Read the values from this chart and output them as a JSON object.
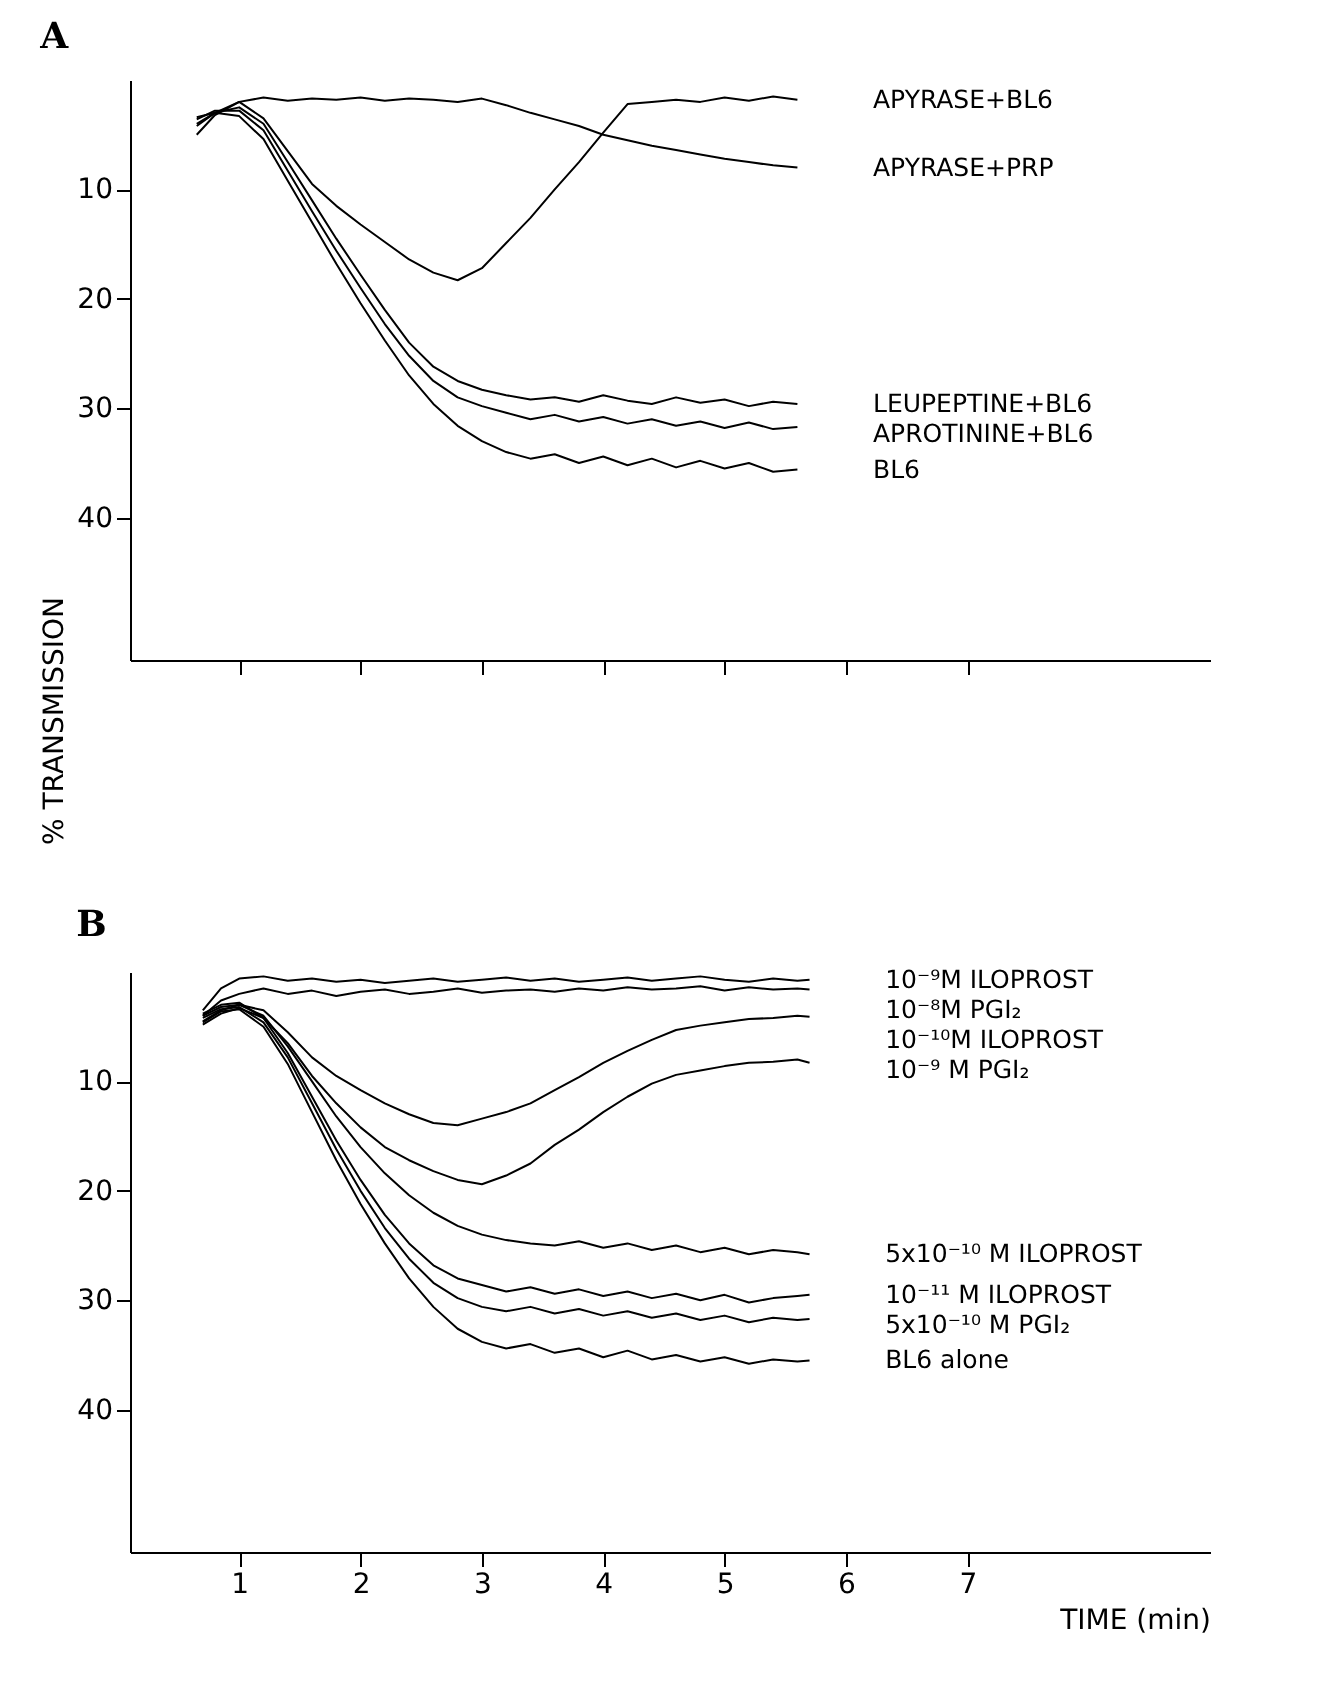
{
  "chart_data": [
    {
      "type": "line",
      "title": "A",
      "ylabel": "% TRANSMISSION",
      "xlim": [
        0.1,
        9.0
      ],
      "ylim": [
        53,
        0
      ],
      "xticks": [
        1,
        2,
        3,
        4,
        5,
        6,
        7
      ],
      "yticks": [
        10,
        20,
        30,
        40
      ],
      "tick_labels": "y",
      "x": [
        0.65,
        0.8,
        1.0,
        1.2,
        1.4,
        1.6,
        1.8,
        2.0,
        2.2,
        2.4,
        2.6,
        2.8,
        3.0,
        3.2,
        3.4,
        3.6,
        3.8,
        4.0,
        4.2,
        4.4,
        4.6,
        4.8,
        5.0,
        5.2,
        5.4,
        5.6
      ],
      "series": [
        {
          "name": "APYRASE+BL6",
          "color": "#000000",
          "values": [
            4.2,
            3.0,
            2.0,
            3.5,
            6.5,
            9.5,
            11.5,
            13.2,
            14.8,
            16.4,
            17.6,
            18.3,
            17.2,
            14.9,
            12.6,
            10.0,
            7.5,
            4.8,
            2.2,
            2.0,
            1.8,
            2.0,
            1.6,
            1.9,
            1.5,
            1.8
          ]
        },
        {
          "name": "APYRASE+PRP",
          "color": "#000000",
          "values": [
            5.0,
            3.2,
            2.0,
            1.6,
            1.9,
            1.7,
            1.8,
            1.6,
            1.9,
            1.7,
            1.8,
            2.0,
            1.7,
            2.3,
            3.0,
            3.6,
            4.2,
            5.0,
            5.5,
            6.0,
            6.4,
            6.8,
            7.2,
            7.5,
            7.8,
            8.0
          ]
        },
        {
          "name": "LEUPEPTINE+BL6",
          "color": "#000000",
          "values": [
            4.0,
            3.0,
            2.5,
            4.0,
            7.5,
            11.0,
            14.5,
            17.8,
            21.0,
            24.0,
            26.2,
            27.5,
            28.3,
            28.8,
            29.2,
            29.0,
            29.4,
            28.8,
            29.3,
            29.6,
            29.0,
            29.5,
            29.2,
            29.8,
            29.4,
            29.6
          ]
        },
        {
          "name": "APROTININE+BL6",
          "color": "#000000",
          "values": [
            3.6,
            2.8,
            2.8,
            4.6,
            8.3,
            12.0,
            15.6,
            19.0,
            22.3,
            25.2,
            27.5,
            29.0,
            29.8,
            30.4,
            31.0,
            30.6,
            31.2,
            30.8,
            31.4,
            31.0,
            31.6,
            31.2,
            31.8,
            31.3,
            31.9,
            31.7
          ]
        },
        {
          "name": "BL6",
          "color": "#000000",
          "values": [
            3.4,
            3.0,
            3.3,
            5.4,
            9.2,
            13.0,
            16.8,
            20.4,
            23.8,
            27.0,
            29.6,
            31.6,
            33.0,
            34.0,
            34.6,
            34.2,
            35.0,
            34.4,
            35.2,
            34.6,
            35.4,
            34.8,
            35.5,
            35.0,
            35.8,
            35.6
          ]
        }
      ]
    },
    {
      "type": "line",
      "title": "B",
      "xlabel": "TIME (min)",
      "xlim": [
        0.1,
        9.0
      ],
      "ylim": [
        53,
        0
      ],
      "xticks": [
        1,
        2,
        3,
        4,
        5,
        6,
        7
      ],
      "yticks": [
        10,
        20,
        30,
        40
      ],
      "x": [
        0.7,
        0.85,
        1.0,
        1.2,
        1.4,
        1.6,
        1.8,
        2.0,
        2.2,
        2.4,
        2.6,
        2.8,
        3.0,
        3.2,
        3.4,
        3.6,
        3.8,
        4.0,
        4.2,
        4.4,
        4.6,
        4.8,
        5.0,
        5.2,
        5.4,
        5.6,
        5.7
      ],
      "series": [
        {
          "name": "10⁻⁹M ILOPROST",
          "color": "#000000",
          "values": [
            3.5,
            1.5,
            0.6,
            0.4,
            0.8,
            0.6,
            0.9,
            0.7,
            1.0,
            0.8,
            0.6,
            0.9,
            0.7,
            0.5,
            0.8,
            0.6,
            0.9,
            0.7,
            0.5,
            0.8,
            0.6,
            0.4,
            0.7,
            0.9,
            0.6,
            0.8,
            0.7
          ]
        },
        {
          "name": "10⁻⁸M PGI₂",
          "color": "#000000",
          "values": [
            4.0,
            2.6,
            2.0,
            1.5,
            2.0,
            1.7,
            2.2,
            1.8,
            1.6,
            2.0,
            1.8,
            1.5,
            1.9,
            1.7,
            1.6,
            1.8,
            1.5,
            1.7,
            1.4,
            1.6,
            1.5,
            1.3,
            1.7,
            1.4,
            1.6,
            1.5,
            1.6
          ]
        },
        {
          "name": "10⁻¹⁰M ILOPROST",
          "color": "#000000",
          "values": [
            4.5,
            3.5,
            3.0,
            3.5,
            5.5,
            7.8,
            9.5,
            10.8,
            12.0,
            13.0,
            13.8,
            14.0,
            13.4,
            12.8,
            12.0,
            10.8,
            9.6,
            8.3,
            7.2,
            6.2,
            5.3,
            4.9,
            4.6,
            4.3,
            4.2,
            4.0,
            4.1
          ]
        },
        {
          "name": "10⁻⁹ M PGI₂",
          "color": "#000000",
          "values": [
            4.8,
            3.8,
            3.3,
            4.2,
            6.5,
            9.5,
            12.0,
            14.2,
            16.0,
            17.2,
            18.2,
            19.0,
            19.4,
            18.6,
            17.5,
            15.8,
            14.4,
            12.8,
            11.4,
            10.2,
            9.4,
            9.0,
            8.6,
            8.3,
            8.2,
            8.0,
            8.3
          ]
        },
        {
          "name": "5x10⁻¹⁰ M ILOPROST",
          "color": "#000000",
          "values": [
            4.0,
            3.2,
            3.0,
            4.0,
            6.8,
            10.0,
            13.2,
            16.0,
            18.4,
            20.4,
            22.0,
            23.2,
            24.0,
            24.5,
            24.8,
            25.0,
            24.6,
            25.2,
            24.8,
            25.4,
            25.0,
            25.6,
            25.2,
            25.8,
            25.4,
            25.6,
            25.8
          ]
        },
        {
          "name": "10⁻¹¹ M ILOPROST",
          "color": "#000000",
          "values": [
            3.8,
            3.0,
            2.8,
            4.2,
            7.4,
            11.4,
            15.4,
            19.0,
            22.2,
            24.8,
            26.8,
            28.0,
            28.6,
            29.2,
            28.8,
            29.4,
            29.0,
            29.6,
            29.2,
            29.8,
            29.4,
            30.0,
            29.5,
            30.2,
            29.8,
            29.6,
            29.5
          ]
        },
        {
          "name": "5x10⁻¹⁰ M PGI₂",
          "color": "#000000",
          "values": [
            4.2,
            3.4,
            3.2,
            4.6,
            7.8,
            12.0,
            16.2,
            20.0,
            23.4,
            26.2,
            28.4,
            29.8,
            30.6,
            31.0,
            30.6,
            31.2,
            30.8,
            31.4,
            31.0,
            31.6,
            31.2,
            31.8,
            31.4,
            32.0,
            31.6,
            31.8,
            31.7
          ]
        },
        {
          "name": "BL6 alone",
          "color": "#000000",
          "values": [
            4.6,
            3.6,
            3.4,
            5.0,
            8.4,
            12.8,
            17.2,
            21.2,
            24.8,
            28.0,
            30.6,
            32.6,
            33.8,
            34.4,
            34.0,
            34.8,
            34.4,
            35.2,
            34.6,
            35.4,
            35.0,
            35.6,
            35.2,
            35.8,
            35.4,
            35.6,
            35.5
          ]
        }
      ]
    }
  ]
}
